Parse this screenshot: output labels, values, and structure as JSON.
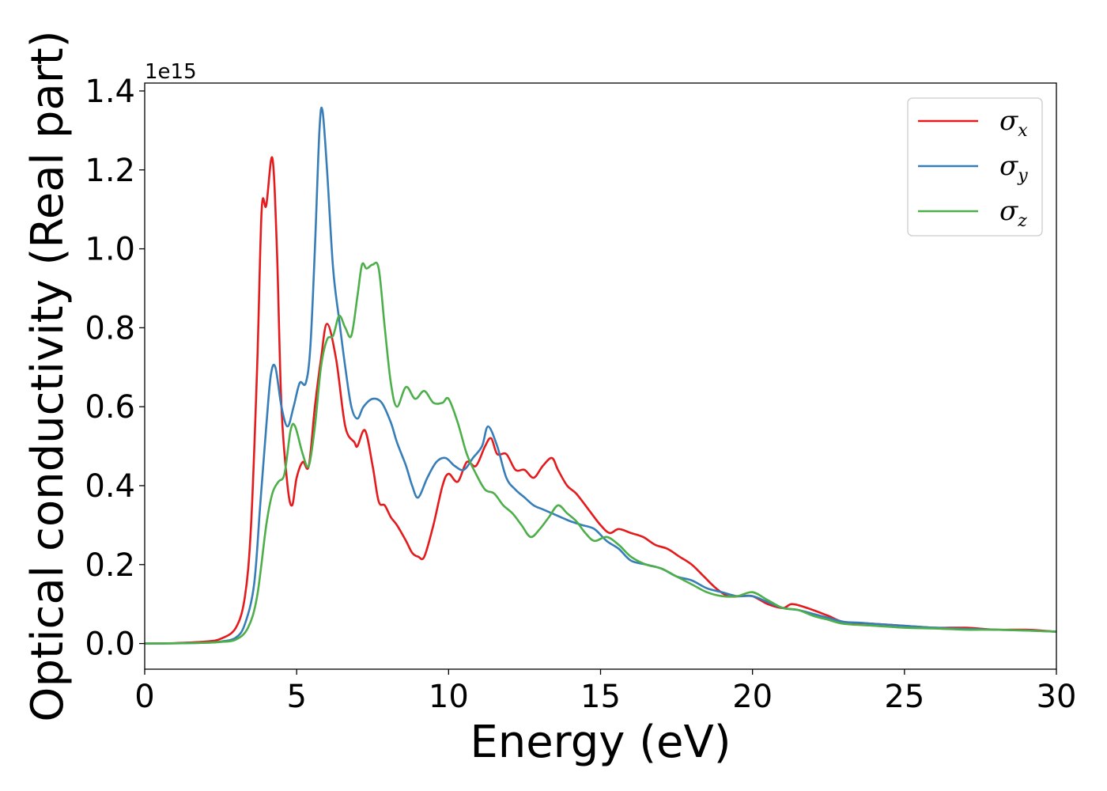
{
  "chart_data": {
    "type": "line",
    "title": "",
    "xlabel": "Energy (eV)",
    "ylabel": "Optical conductivity (Real part)",
    "y_offset_label": "1e15",
    "xlim": [
      0,
      30
    ],
    "ylim": [
      -0.065,
      1.42
    ],
    "x_ticks": [
      0,
      5,
      10,
      15,
      20,
      25,
      30
    ],
    "x_tick_labels": [
      "0",
      "5",
      "10",
      "15",
      "20",
      "25",
      "30"
    ],
    "y_ticks": [
      0.0,
      0.2,
      0.4,
      0.6,
      0.8,
      1.0,
      1.2,
      1.4
    ],
    "y_tick_labels": [
      "0.0",
      "0.2",
      "0.4",
      "0.6",
      "0.8",
      "1.0",
      "1.2",
      "1.4"
    ],
    "grid": false,
    "legend_position": "top-right",
    "series": [
      {
        "name": "σx",
        "legend_symbol": "σ",
        "legend_subscript": "x",
        "color": "#e41a1c",
        "points": [
          [
            0,
            0
          ],
          [
            1,
            0.001
          ],
          [
            2,
            0.005
          ],
          [
            2.5,
            0.012
          ],
          [
            3,
            0.04
          ],
          [
            3.3,
            0.12
          ],
          [
            3.5,
            0.3
          ],
          [
            3.7,
            0.7
          ],
          [
            3.85,
            1.1
          ],
          [
            4.0,
            1.11
          ],
          [
            4.2,
            1.23
          ],
          [
            4.35,
            1.0
          ],
          [
            4.5,
            0.6
          ],
          [
            4.7,
            0.4
          ],
          [
            4.85,
            0.35
          ],
          [
            5.0,
            0.42
          ],
          [
            5.2,
            0.46
          ],
          [
            5.4,
            0.45
          ],
          [
            5.6,
            0.6
          ],
          [
            5.8,
            0.72
          ],
          [
            6.0,
            0.81
          ],
          [
            6.3,
            0.72
          ],
          [
            6.6,
            0.55
          ],
          [
            6.9,
            0.51
          ],
          [
            7.0,
            0.5
          ],
          [
            7.25,
            0.54
          ],
          [
            7.5,
            0.45
          ],
          [
            7.7,
            0.36
          ],
          [
            7.9,
            0.35
          ],
          [
            8.1,
            0.32
          ],
          [
            8.3,
            0.3
          ],
          [
            8.6,
            0.26
          ],
          [
            8.8,
            0.23
          ],
          [
            9.0,
            0.22
          ],
          [
            9.2,
            0.22
          ],
          [
            9.5,
            0.3
          ],
          [
            9.8,
            0.4
          ],
          [
            10.0,
            0.43
          ],
          [
            10.3,
            0.41
          ],
          [
            10.6,
            0.46
          ],
          [
            10.9,
            0.45
          ],
          [
            11.2,
            0.5
          ],
          [
            11.4,
            0.52
          ],
          [
            11.6,
            0.48
          ],
          [
            11.9,
            0.48
          ],
          [
            12.2,
            0.44
          ],
          [
            12.5,
            0.44
          ],
          [
            12.8,
            0.42
          ],
          [
            13.1,
            0.45
          ],
          [
            13.4,
            0.47
          ],
          [
            13.6,
            0.44
          ],
          [
            13.9,
            0.4
          ],
          [
            14.2,
            0.38
          ],
          [
            14.6,
            0.34
          ],
          [
            15.0,
            0.3
          ],
          [
            15.3,
            0.28
          ],
          [
            15.6,
            0.29
          ],
          [
            16.0,
            0.28
          ],
          [
            16.4,
            0.27
          ],
          [
            16.8,
            0.25
          ],
          [
            17.2,
            0.24
          ],
          [
            17.6,
            0.22
          ],
          [
            18.0,
            0.2
          ],
          [
            18.4,
            0.17
          ],
          [
            18.8,
            0.14
          ],
          [
            19.2,
            0.12
          ],
          [
            19.6,
            0.12
          ],
          [
            20.0,
            0.12
          ],
          [
            20.5,
            0.1
          ],
          [
            21.0,
            0.09
          ],
          [
            21.3,
            0.1
          ],
          [
            21.8,
            0.09
          ],
          [
            22.5,
            0.07
          ],
          [
            23.0,
            0.055
          ],
          [
            24.0,
            0.05
          ],
          [
            25.0,
            0.045
          ],
          [
            26.0,
            0.04
          ],
          [
            27.0,
            0.04
          ],
          [
            28.0,
            0.035
          ],
          [
            29.0,
            0.035
          ],
          [
            30.0,
            0.03
          ]
        ]
      },
      {
        "name": "σy",
        "legend_symbol": "σ",
        "legend_subscript": "y",
        "color": "#377eb8",
        "points": [
          [
            0,
            0
          ],
          [
            1,
            0.0005
          ],
          [
            2,
            0.002
          ],
          [
            2.5,
            0.005
          ],
          [
            3,
            0.015
          ],
          [
            3.3,
            0.05
          ],
          [
            3.6,
            0.15
          ],
          [
            3.8,
            0.35
          ],
          [
            4.0,
            0.55
          ],
          [
            4.15,
            0.68
          ],
          [
            4.3,
            0.7
          ],
          [
            4.5,
            0.6
          ],
          [
            4.7,
            0.55
          ],
          [
            4.9,
            0.6
          ],
          [
            5.1,
            0.66
          ],
          [
            5.3,
            0.66
          ],
          [
            5.45,
            0.75
          ],
          [
            5.6,
            1.0
          ],
          [
            5.75,
            1.3
          ],
          [
            5.85,
            1.35
          ],
          [
            6.0,
            1.2
          ],
          [
            6.2,
            0.95
          ],
          [
            6.4,
            0.82
          ],
          [
            6.6,
            0.7
          ],
          [
            6.8,
            0.6
          ],
          [
            7.0,
            0.57
          ],
          [
            7.2,
            0.6
          ],
          [
            7.5,
            0.62
          ],
          [
            7.8,
            0.61
          ],
          [
            8.1,
            0.56
          ],
          [
            8.3,
            0.51
          ],
          [
            8.6,
            0.45
          ],
          [
            8.8,
            0.4
          ],
          [
            9.0,
            0.37
          ],
          [
            9.3,
            0.42
          ],
          [
            9.6,
            0.46
          ],
          [
            9.9,
            0.47
          ],
          [
            10.2,
            0.45
          ],
          [
            10.5,
            0.44
          ],
          [
            10.8,
            0.47
          ],
          [
            11.1,
            0.5
          ],
          [
            11.3,
            0.55
          ],
          [
            11.6,
            0.5
          ],
          [
            11.9,
            0.42
          ],
          [
            12.2,
            0.39
          ],
          [
            12.5,
            0.37
          ],
          [
            12.8,
            0.35
          ],
          [
            13.1,
            0.34
          ],
          [
            13.4,
            0.33
          ],
          [
            13.7,
            0.32
          ],
          [
            14.0,
            0.31
          ],
          [
            14.4,
            0.3
          ],
          [
            14.8,
            0.29
          ],
          [
            15.2,
            0.26
          ],
          [
            15.6,
            0.24
          ],
          [
            16.0,
            0.21
          ],
          [
            16.5,
            0.2
          ],
          [
            17.0,
            0.19
          ],
          [
            17.5,
            0.17
          ],
          [
            18.0,
            0.16
          ],
          [
            18.5,
            0.14
          ],
          [
            19.0,
            0.13
          ],
          [
            19.5,
            0.12
          ],
          [
            20.0,
            0.12
          ],
          [
            20.5,
            0.105
          ],
          [
            21.0,
            0.09
          ],
          [
            21.5,
            0.085
          ],
          [
            22.0,
            0.075
          ],
          [
            22.5,
            0.065
          ],
          [
            23.0,
            0.055
          ],
          [
            23.5,
            0.053
          ],
          [
            24.0,
            0.05
          ],
          [
            25.0,
            0.045
          ],
          [
            26.0,
            0.04
          ],
          [
            27.0,
            0.037
          ],
          [
            28.0,
            0.035
          ],
          [
            29.0,
            0.033
          ],
          [
            30.0,
            0.03
          ]
        ]
      },
      {
        "name": "σz",
        "legend_symbol": "σ",
        "legend_subscript": "z",
        "color": "#4daf4a",
        "points": [
          [
            0,
            0
          ],
          [
            1,
            0.0005
          ],
          [
            2,
            0.002
          ],
          [
            2.5,
            0.004
          ],
          [
            3,
            0.01
          ],
          [
            3.4,
            0.04
          ],
          [
            3.7,
            0.12
          ],
          [
            4.0,
            0.3
          ],
          [
            4.2,
            0.38
          ],
          [
            4.4,
            0.41
          ],
          [
            4.6,
            0.43
          ],
          [
            4.8,
            0.54
          ],
          [
            4.95,
            0.55
          ],
          [
            5.2,
            0.48
          ],
          [
            5.4,
            0.45
          ],
          [
            5.6,
            0.55
          ],
          [
            5.8,
            0.7
          ],
          [
            6.0,
            0.77
          ],
          [
            6.2,
            0.78
          ],
          [
            6.4,
            0.83
          ],
          [
            6.6,
            0.8
          ],
          [
            6.8,
            0.78
          ],
          [
            7.0,
            0.88
          ],
          [
            7.15,
            0.96
          ],
          [
            7.3,
            0.95
          ],
          [
            7.5,
            0.96
          ],
          [
            7.7,
            0.95
          ],
          [
            7.9,
            0.8
          ],
          [
            8.1,
            0.66
          ],
          [
            8.3,
            0.6
          ],
          [
            8.6,
            0.65
          ],
          [
            8.9,
            0.62
          ],
          [
            9.2,
            0.64
          ],
          [
            9.5,
            0.61
          ],
          [
            9.8,
            0.61
          ],
          [
            10.0,
            0.62
          ],
          [
            10.3,
            0.56
          ],
          [
            10.6,
            0.48
          ],
          [
            10.9,
            0.43
          ],
          [
            11.2,
            0.39
          ],
          [
            11.5,
            0.38
          ],
          [
            11.8,
            0.35
          ],
          [
            12.1,
            0.33
          ],
          [
            12.4,
            0.3
          ],
          [
            12.7,
            0.27
          ],
          [
            13.0,
            0.29
          ],
          [
            13.3,
            0.32
          ],
          [
            13.6,
            0.35
          ],
          [
            13.9,
            0.33
          ],
          [
            14.2,
            0.31
          ],
          [
            14.5,
            0.28
          ],
          [
            14.8,
            0.26
          ],
          [
            15.2,
            0.27
          ],
          [
            15.6,
            0.25
          ],
          [
            16.0,
            0.22
          ],
          [
            16.5,
            0.2
          ],
          [
            17.0,
            0.19
          ],
          [
            17.5,
            0.17
          ],
          [
            18.0,
            0.15
          ],
          [
            18.5,
            0.13
          ],
          [
            19.0,
            0.12
          ],
          [
            19.5,
            0.12
          ],
          [
            20.0,
            0.13
          ],
          [
            20.5,
            0.11
          ],
          [
            21.0,
            0.09
          ],
          [
            21.5,
            0.085
          ],
          [
            22.0,
            0.07
          ],
          [
            22.5,
            0.06
          ],
          [
            23.0,
            0.05
          ],
          [
            24.0,
            0.045
          ],
          [
            25.0,
            0.04
          ],
          [
            26.0,
            0.038
          ],
          [
            27.0,
            0.035
          ],
          [
            28.0,
            0.035
          ],
          [
            29.0,
            0.033
          ],
          [
            30.0,
            0.03
          ]
        ]
      }
    ]
  }
}
